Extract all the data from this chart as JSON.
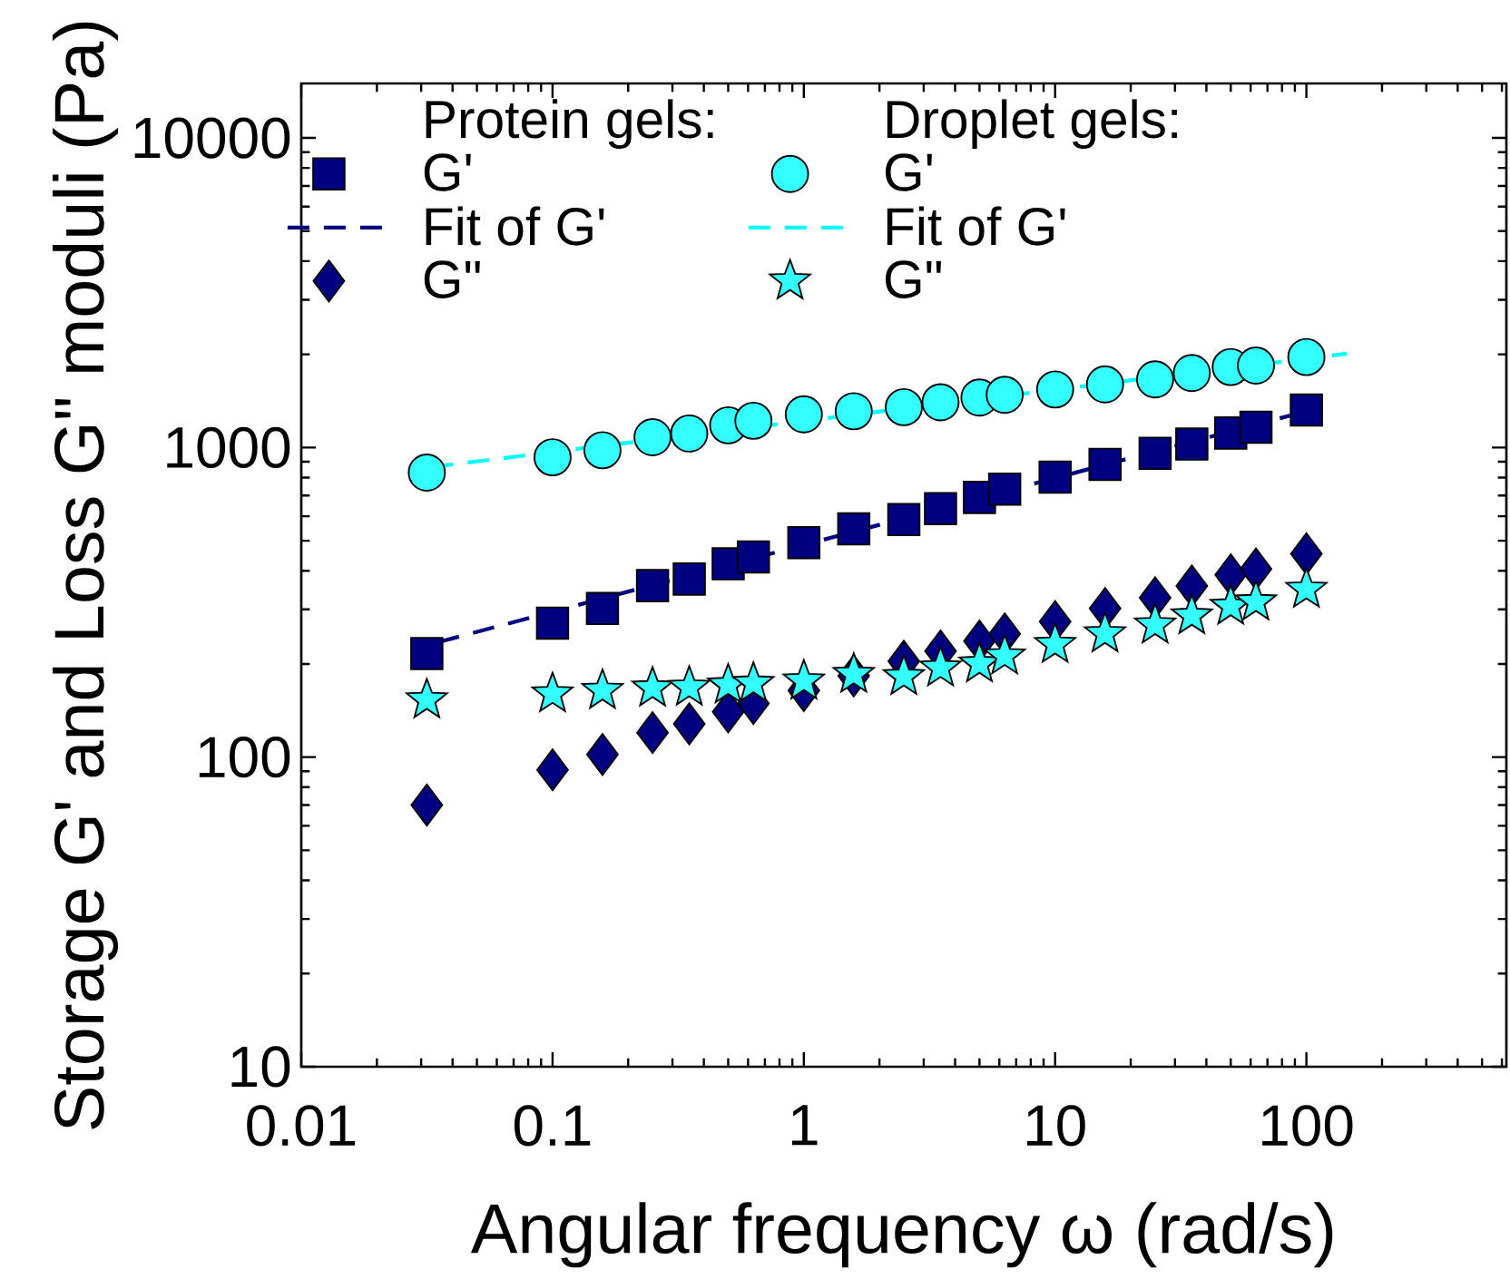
{
  "chart_data": {
    "type": "scatter",
    "xlabel": "Angular frequency ω (rad/s)",
    "ylabel": "Storage G' and Loss G\" moduli (Pa)",
    "annotations": [
      "Protein gels:",
      "Droplet gels:"
    ],
    "log": "xy",
    "legend": "top left",
    "xlim": [
      0.01,
      625
    ],
    "ylim": [
      10,
      15000
    ],
    "xticks": [
      0.01,
      0.1,
      1,
      10,
      100
    ],
    "yticks": [
      10,
      100,
      1000,
      10000
    ],
    "series": [
      {
        "name": "G'",
        "marker": "square",
        "color": "#000080",
        "x": [
          0.0316,
          0.1,
          0.158,
          0.25,
          0.35,
          0.5,
          0.63,
          1,
          1.58,
          2.5,
          3.5,
          5,
          6.3,
          10,
          15.8,
          25,
          35,
          50,
          63,
          100
        ],
        "values": [
          216,
          271,
          302,
          358,
          376,
          421,
          443,
          493,
          546,
          585,
          635,
          690,
          734,
          802,
          882,
          958,
          1026,
          1114,
          1163,
          1321
        ]
      },
      {
        "name": "Fit of G'",
        "type": "line",
        "line_style": "dashed",
        "color": "#000080",
        "x": [
          0.035,
          100
        ],
        "values": [
          235,
          1310
        ]
      },
      {
        "name": "G\"",
        "marker": "diamond",
        "color": "#000080",
        "x": [
          0.0316,
          0.1,
          0.158,
          0.25,
          0.35,
          0.5,
          0.63,
          1,
          1.58,
          2.5,
          3.5,
          5,
          6.3,
          10,
          15.8,
          25,
          35,
          50,
          63,
          100
        ],
        "values": [
          70,
          91,
          102,
          120,
          128,
          140,
          149,
          164,
          183,
          204,
          220,
          237,
          250,
          274,
          302,
          327,
          357,
          388,
          405,
          454
        ]
      },
      {
        "name": "G'",
        "marker": "circle",
        "color": "#33ffff",
        "x": [
          0.0316,
          0.1,
          0.158,
          0.25,
          0.35,
          0.5,
          0.63,
          1,
          1.58,
          2.5,
          3.5,
          5,
          6.3,
          10,
          15.8,
          25,
          35,
          50,
          63,
          100
        ],
        "values": [
          830,
          930,
          980,
          1080,
          1110,
          1180,
          1220,
          1280,
          1310,
          1350,
          1400,
          1450,
          1480,
          1540,
          1600,
          1660,
          1740,
          1820,
          1840,
          1960
        ]
      },
      {
        "name": "Fit of G'",
        "type": "line",
        "line_style": "dashed",
        "color": "#00ffff",
        "x": [
          0.033,
          145
        ],
        "values": [
          865,
          2010
        ]
      },
      {
        "name": "G\"",
        "marker": "star",
        "color": "#33ffff",
        "x": [
          0.0316,
          0.1,
          0.158,
          0.25,
          0.35,
          0.5,
          0.63,
          1,
          1.58,
          2.5,
          3.5,
          5,
          6.3,
          10,
          15.8,
          25,
          35,
          50,
          63,
          100
        ],
        "values": [
          153,
          160,
          164,
          167,
          168,
          171,
          173,
          176,
          185,
          182,
          194,
          200,
          212,
          231,
          250,
          267,
          286,
          307,
          317,
          348
        ]
      }
    ]
  }
}
